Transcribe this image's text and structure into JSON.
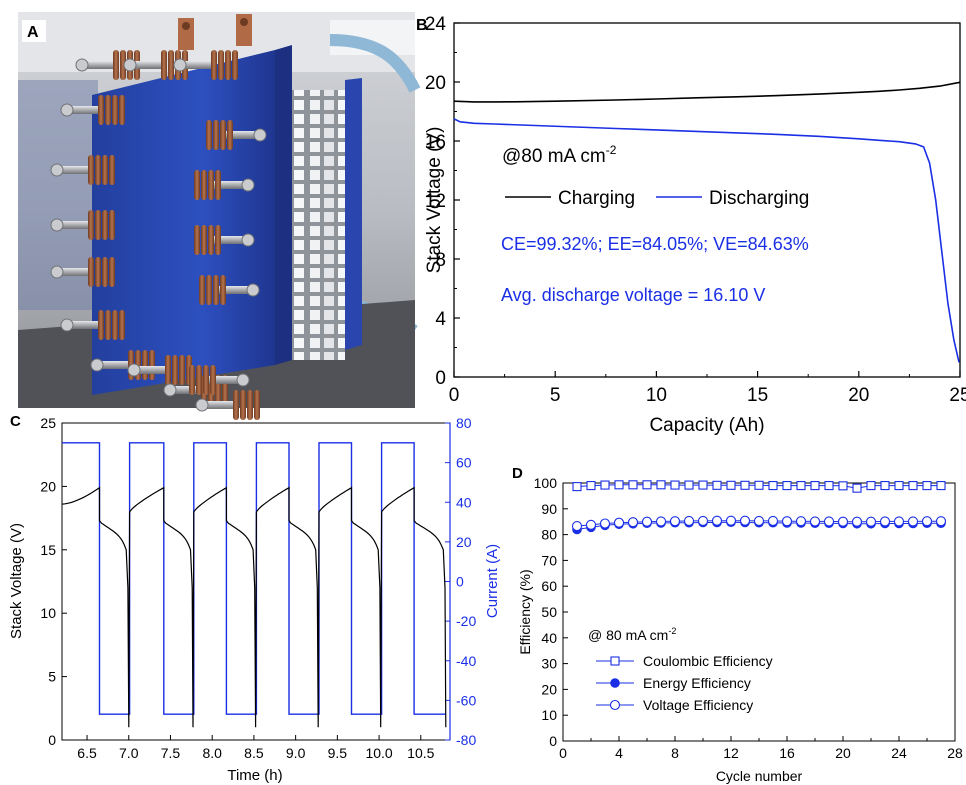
{
  "panels": {
    "A": {
      "letter": "A"
    },
    "B": {
      "letter": "B"
    },
    "C": {
      "letter": "C"
    },
    "D": {
      "letter": "D"
    }
  },
  "colors": {
    "black": "#000000",
    "blue": "#1a2fe6",
    "photo_blue": "#2c4db8",
    "copper": "#9a5a3a"
  },
  "chart_data": [
    {
      "panel": "B",
      "type": "line",
      "xlabel": "Capacity (Ah)",
      "ylabel": "Stack Voltage (V)",
      "xlim": [
        0,
        25
      ],
      "ylim": [
        0,
        24
      ],
      "xticks": [
        "0",
        "5",
        "10",
        "15",
        "20",
        "25"
      ],
      "yticks": [
        "0",
        "4",
        "8",
        "12",
        "16",
        "20",
        "24"
      ],
      "annotation_condition": "@80 mA cm",
      "annotation_condition_sup": "-2",
      "annotation_efficiencies": "CE=99.32%; EE=84.05%; VE=84.63%",
      "annotation_avg_voltage": "Avg. discharge voltage = 16.10 V",
      "legend": [
        "Charging",
        "Discharging"
      ],
      "series": [
        {
          "name": "Charging",
          "color": "#000000",
          "x": [
            0,
            1,
            2,
            3,
            5,
            8,
            10,
            12,
            14,
            16,
            18,
            20,
            21,
            22,
            23,
            24,
            25
          ],
          "y": [
            18.7,
            18.65,
            18.65,
            18.66,
            18.7,
            18.78,
            18.85,
            18.93,
            19.0,
            19.08,
            19.18,
            19.3,
            19.37,
            19.46,
            19.57,
            19.72,
            19.98
          ]
        },
        {
          "name": "Discharging",
          "color": "#1a2fe6",
          "x": [
            0,
            0.3,
            1,
            2,
            4,
            6,
            8,
            10,
            12,
            14,
            16,
            18,
            20,
            21,
            22,
            22.8,
            23.2,
            23.5,
            23.8,
            24.1,
            24.4,
            24.7,
            24.95
          ],
          "y": [
            17.5,
            17.3,
            17.2,
            17.15,
            17.05,
            16.95,
            16.85,
            16.75,
            16.65,
            16.55,
            16.45,
            16.32,
            16.15,
            16.05,
            15.95,
            15.8,
            15.6,
            14.5,
            12.0,
            8.5,
            5.0,
            2.5,
            1.0
          ]
        }
      ]
    },
    {
      "panel": "C",
      "type": "line",
      "xlabel": "Time (h)",
      "ylabel": "Stack Voltage (V)",
      "y2label": "Current (A)",
      "xlim": [
        6.2,
        10.85
      ],
      "ylim": [
        0,
        25
      ],
      "y2lim": [
        -80,
        80
      ],
      "xticks": [
        "6.5",
        "7.0",
        "7.5",
        "8.0",
        "8.5",
        "9.0",
        "9.5",
        "10.0",
        "10.5"
      ],
      "yticks": [
        "0",
        "5",
        "10",
        "15",
        "20",
        "25"
      ],
      "y2ticks": [
        "-80",
        "-60",
        "-40",
        "-20",
        "0",
        "20",
        "40",
        "60",
        "80"
      ],
      "cycles": {
        "charge_start": [
          6.2,
          7.01,
          7.78,
          8.53,
          9.28,
          10.03
        ],
        "switch": [
          6.65,
          7.42,
          8.17,
          8.92,
          9.67,
          10.42
        ],
        "discharge_end": [
          7.0,
          7.77,
          8.52,
          9.27,
          10.02,
          10.8
        ],
        "charge_current": 70,
        "discharge_current": -67
      },
      "series": [
        {
          "name": "Voltage",
          "color": "#000000"
        },
        {
          "name": "Current",
          "color": "#1a2fe6"
        }
      ]
    },
    {
      "panel": "D",
      "type": "scatter",
      "xlabel": "Cycle number",
      "ylabel": "Efficiency (%)",
      "xlim": [
        0,
        28
      ],
      "ylim": [
        0,
        100
      ],
      "xticks": [
        "0",
        "4",
        "8",
        "12",
        "16",
        "20",
        "24",
        "28"
      ],
      "yticks": [
        "0",
        "10",
        "20",
        "30",
        "40",
        "50",
        "60",
        "70",
        "80",
        "90",
        "100"
      ],
      "legend_title": "@ 80 mA cm",
      "legend_title_sup": "-2",
      "x": [
        1,
        2,
        3,
        4,
        5,
        6,
        7,
        8,
        9,
        10,
        11,
        12,
        13,
        14,
        15,
        16,
        17,
        18,
        19,
        20,
        21,
        22,
        23,
        24,
        25,
        26,
        27
      ],
      "series": [
        {
          "name": "Coulombic Efficiency",
          "marker": "open-square",
          "color": "#1a2fe6",
          "values": [
            98.6,
            99.0,
            99.2,
            99.3,
            99.3,
            99.3,
            99.3,
            99.2,
            99.2,
            99.2,
            99.1,
            99.1,
            99.1,
            99.1,
            99.0,
            99.0,
            99.0,
            99.0,
            99.0,
            98.9,
            98.0,
            99.0,
            99.0,
            99.0,
            99.0,
            99.0,
            99.0
          ]
        },
        {
          "name": "Energy Efficiency",
          "marker": "filled-circle",
          "color": "#1a2fe6",
          "values": [
            82.0,
            82.8,
            83.6,
            84.0,
            84.2,
            84.4,
            84.5,
            84.6,
            84.6,
            84.7,
            84.7,
            84.8,
            84.7,
            84.6,
            84.6,
            84.5,
            84.5,
            84.4,
            84.4,
            84.3,
            84.2,
            84.2,
            84.3,
            84.3,
            84.3,
            84.4,
            84.4
          ]
        },
        {
          "name": "Voltage Efficiency",
          "marker": "open-circle",
          "color": "#1a2fe6",
          "values": [
            83.3,
            83.8,
            84.3,
            84.6,
            84.8,
            85.0,
            85.1,
            85.2,
            85.3,
            85.3,
            85.4,
            85.4,
            85.4,
            85.3,
            85.3,
            85.2,
            85.2,
            85.1,
            85.1,
            85.0,
            85.0,
            85.0,
            85.1,
            85.1,
            85.1,
            85.2,
            85.2
          ]
        }
      ]
    }
  ]
}
